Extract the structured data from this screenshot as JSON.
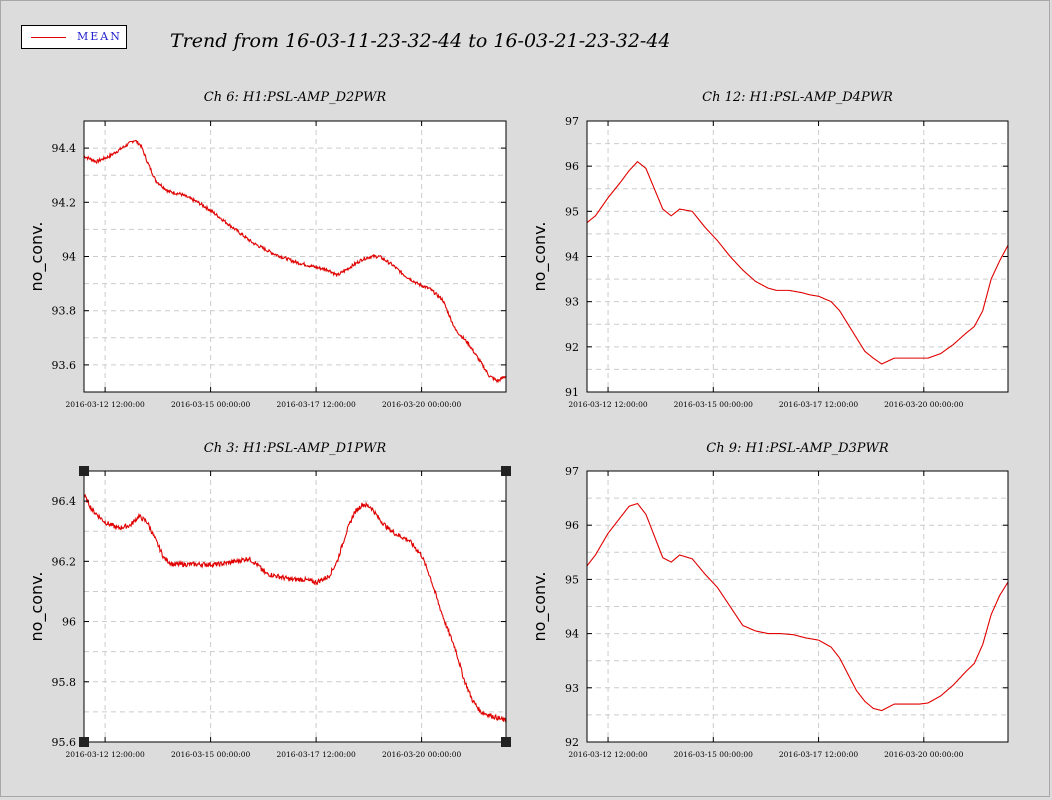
{
  "legend": {
    "label": "MEAN",
    "color": "#e00000"
  },
  "title": "Trend from 16-03-11-23-32-44 to 16-03-21-23-32-44",
  "chart_data": [
    {
      "type": "line",
      "title": "Ch 6: H1:PSL-AMP_D2PWR",
      "ylabel": "no_conv.",
      "xlabel": "",
      "x_ticks": [
        "2016-03-12 12:00:00",
        "2016-03-15 00:00:00",
        "2016-03-17 12:00:00",
        "2016-03-20 00:00:00"
      ],
      "xlim_days": [
        0,
        10
      ],
      "x_tick_days": [
        0.5,
        3.0,
        5.5,
        8.0
      ],
      "ylim": [
        93.5,
        94.5
      ],
      "y_ticks": [
        93.6,
        93.8,
        94.0,
        94.2,
        94.4
      ],
      "y_tick_labels": [
        "93.6",
        "93.8",
        "94",
        "94.2",
        "94.4"
      ],
      "grid": true,
      "noise": 0.006,
      "series": [
        {
          "color": "#e00000",
          "x": [
            0,
            0.3,
            0.6,
            0.9,
            1.1,
            1.2,
            1.35,
            1.5,
            1.7,
            2.0,
            2.3,
            2.7,
            3.0,
            3.5,
            4.0,
            4.5,
            5.0,
            5.5,
            5.8,
            6.0,
            6.3,
            6.6,
            6.8,
            7.0,
            7.3,
            7.6,
            7.9,
            8.2,
            8.5,
            8.8,
            9.1,
            9.4,
            9.6,
            9.8,
            10
          ],
          "y": [
            94.37,
            94.35,
            94.37,
            94.4,
            94.42,
            94.43,
            94.41,
            94.35,
            94.28,
            94.24,
            94.23,
            94.2,
            94.17,
            94.11,
            94.05,
            94.01,
            93.98,
            93.96,
            93.95,
            93.93,
            93.96,
            93.99,
            94.0,
            94.0,
            93.97,
            93.93,
            93.9,
            93.88,
            93.84,
            93.73,
            93.68,
            93.61,
            93.56,
            93.54,
            93.56
          ]
        }
      ]
    },
    {
      "type": "line",
      "title": "Ch 12: H1:PSL-AMP_D4PWR",
      "ylabel": "no_conv.",
      "xlabel": "",
      "x_ticks": [
        "2016-03-12 12:00:00",
        "2016-03-15 00:00:00",
        "2016-03-17 12:00:00",
        "2016-03-20 00:00:00"
      ],
      "xlim_days": [
        0,
        10
      ],
      "x_tick_days": [
        0.5,
        3.0,
        5.5,
        8.0
      ],
      "ylim": [
        91,
        97
      ],
      "y_ticks": [
        91,
        92,
        93,
        94,
        95,
        96,
        97
      ],
      "y_tick_labels": [
        "91",
        "92",
        "93",
        "94",
        "95",
        "96",
        "97"
      ],
      "grid": true,
      "noise": 0,
      "series": [
        {
          "color": "#e00000",
          "x": [
            0,
            0.2,
            0.5,
            0.8,
            1.0,
            1.2,
            1.4,
            1.6,
            1.8,
            2.0,
            2.2,
            2.5,
            2.8,
            3.1,
            3.4,
            3.7,
            4.0,
            4.3,
            4.5,
            4.8,
            5.1,
            5.3,
            5.5,
            5.8,
            6.0,
            6.2,
            6.4,
            6.6,
            6.8,
            7.0,
            7.3,
            7.6,
            7.9,
            8.1,
            8.4,
            8.7,
            9.0,
            9.2,
            9.4,
            9.6,
            9.8,
            10
          ],
          "y": [
            94.75,
            94.9,
            95.3,
            95.65,
            95.9,
            96.1,
            95.95,
            95.5,
            95.05,
            94.9,
            95.05,
            95.0,
            94.65,
            94.35,
            94.0,
            93.7,
            93.45,
            93.3,
            93.25,
            93.25,
            93.2,
            93.15,
            93.12,
            93.0,
            92.8,
            92.5,
            92.2,
            91.9,
            91.75,
            91.62,
            91.75,
            91.75,
            91.75,
            91.75,
            91.85,
            92.05,
            92.3,
            92.45,
            92.8,
            93.5,
            93.9,
            94.25
          ]
        }
      ]
    },
    {
      "type": "line",
      "title": "Ch 3: H1:PSL-AMP_D1PWR",
      "ylabel": "no_conv.",
      "xlabel": "",
      "x_ticks": [
        "2016-03-12 12:00:00",
        "2016-03-15 00:00:00",
        "2016-03-17 12:00:00",
        "2016-03-20 00:00:00"
      ],
      "xlim_days": [
        0,
        10
      ],
      "x_tick_days": [
        0.5,
        3.0,
        5.5,
        8.0
      ],
      "ylim": [
        95.6,
        96.5
      ],
      "y_ticks": [
        95.6,
        95.8,
        96.0,
        96.2,
        96.4
      ],
      "y_tick_labels": [
        "95.6",
        "95.8",
        "96",
        "96.2",
        "96.4"
      ],
      "grid": true,
      "noise": 0.008,
      "series": [
        {
          "color": "#e00000",
          "x": [
            0,
            0.2,
            0.5,
            0.8,
            1.1,
            1.3,
            1.5,
            1.7,
            1.9,
            2.1,
            2.4,
            2.8,
            3.2,
            3.6,
            3.9,
            4.1,
            4.3,
            4.6,
            4.9,
            5.2,
            5.5,
            5.8,
            6.0,
            6.2,
            6.4,
            6.6,
            6.8,
            7.0,
            7.2,
            7.4,
            7.7,
            8.0,
            8.2,
            8.4,
            8.6,
            8.8,
            9.0,
            9.2,
            9.4,
            9.6,
            9.8,
            10
          ],
          "y": [
            96.42,
            96.37,
            96.33,
            96.31,
            96.32,
            96.35,
            96.33,
            96.27,
            96.21,
            96.19,
            96.19,
            96.19,
            96.19,
            96.2,
            96.21,
            96.19,
            96.16,
            96.15,
            96.14,
            96.14,
            96.13,
            96.15,
            96.2,
            96.29,
            96.36,
            96.39,
            96.38,
            96.34,
            96.31,
            96.29,
            96.27,
            96.22,
            96.15,
            96.06,
            95.98,
            95.91,
            95.81,
            95.74,
            95.7,
            95.69,
            95.68,
            95.67
          ]
        }
      ]
    },
    {
      "type": "line",
      "title": "Ch 9: H1:PSL-AMP_D3PWR",
      "ylabel": "no_conv.",
      "xlabel": "",
      "x_ticks": [
        "2016-03-12 12:00:00",
        "2016-03-15 00:00:00",
        "2016-03-17 12:00:00",
        "2016-03-20 00:00:00"
      ],
      "xlim_days": [
        0,
        10
      ],
      "x_tick_days": [
        0.5,
        3.0,
        5.5,
        8.0
      ],
      "ylim": [
        92,
        97
      ],
      "y_ticks": [
        92,
        93,
        94,
        95,
        96,
        97
      ],
      "y_tick_labels": [
        "92",
        "93",
        "94",
        "95",
        "96",
        "97"
      ],
      "grid": true,
      "noise": 0,
      "series": [
        {
          "color": "#e00000",
          "x": [
            0,
            0.2,
            0.5,
            0.8,
            1.0,
            1.2,
            1.4,
            1.6,
            1.8,
            2.0,
            2.2,
            2.5,
            2.8,
            3.1,
            3.4,
            3.7,
            4.0,
            4.3,
            4.6,
            4.9,
            5.2,
            5.5,
            5.8,
            6.0,
            6.2,
            6.4,
            6.6,
            6.8,
            7.0,
            7.3,
            7.6,
            7.9,
            8.1,
            8.4,
            8.7,
            9.0,
            9.2,
            9.4,
            9.6,
            9.8,
            10
          ],
          "y": [
            95.25,
            95.45,
            95.85,
            96.15,
            96.35,
            96.4,
            96.2,
            95.8,
            95.4,
            95.32,
            95.45,
            95.38,
            95.1,
            94.85,
            94.5,
            94.15,
            94.05,
            94.0,
            94.0,
            93.98,
            93.92,
            93.88,
            93.75,
            93.55,
            93.25,
            92.95,
            92.75,
            92.62,
            92.58,
            92.7,
            92.7,
            92.7,
            92.72,
            92.85,
            93.05,
            93.3,
            93.45,
            93.8,
            94.35,
            94.7,
            94.95
          ]
        }
      ]
    }
  ]
}
